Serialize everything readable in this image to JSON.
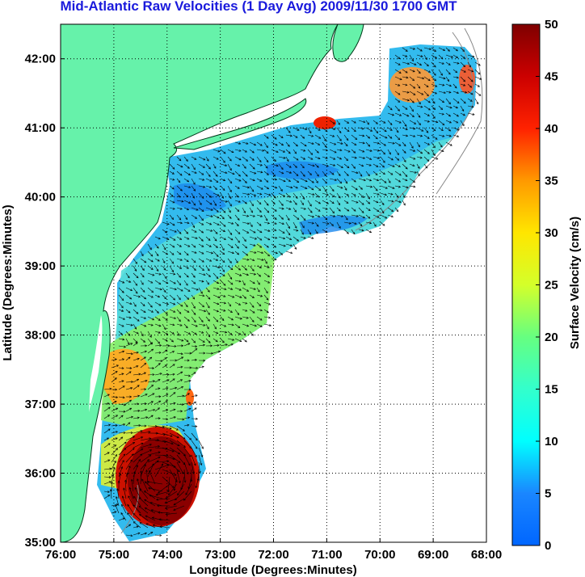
{
  "title": "Mid-Atlantic Raw Velocities (1 Day Avg) 2009/11/30 1700 GMT",
  "map": {
    "xlabel": "Longitude (Degrees:Minutes)",
    "ylabel": "Latitude (Degrees:Minutes)",
    "lon_range": [
      -76,
      -68
    ],
    "lat_range": [
      35,
      42.5
    ],
    "lon_ticks": [
      "76:00",
      "75:00",
      "74:00",
      "73:00",
      "72:00",
      "71:00",
      "70:00",
      "69:00",
      "68:00"
    ],
    "lat_ticks": [
      "35:00",
      "36:00",
      "37:00",
      "38:00",
      "39:00",
      "40:00",
      "41:00",
      "42:00"
    ],
    "grid": "dotted",
    "land_color": "#66f2aa",
    "land_labels": [],
    "vector_color": "#000000"
  },
  "colorbar": {
    "label": "Surface Velocity (cm/s)",
    "min": 0,
    "max": 50,
    "ticks": [
      "0",
      "5",
      "10",
      "15",
      "20",
      "25",
      "30",
      "35",
      "40",
      "45",
      "50"
    ],
    "colormap": "jet"
  }
}
